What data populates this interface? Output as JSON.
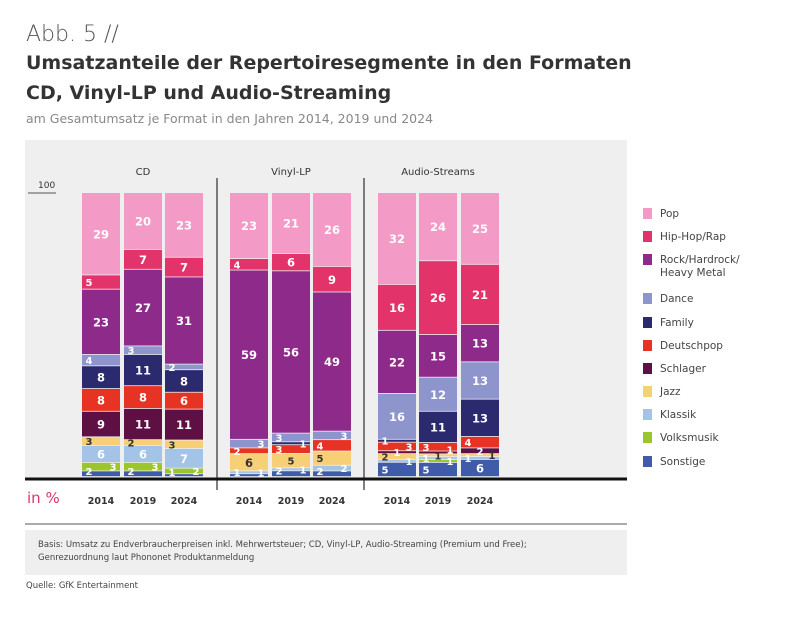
{
  "figure_label": "Abb. 5 //",
  "title_line1": "Umsatzanteile der Repertoiresegmente in den Formaten",
  "title_line2": "CD, Vinyl-LP und Audio-Streaming",
  "subtitle": "am Gesamtumsatz je Format in den Jahren 2014, 2019 und 2024",
  "footnote_line1": "Basis: Umsatz zu Endverbraucherpreisen inkl. Mehrwertsteuer; CD, Vinyl-LP, Audio-Streaming (Premium und Free);",
  "footnote_line2": "Genrezuordnung laut Phononet Produktanmeldung",
  "source": "Quelle: GfK Entertainment",
  "chart_data": {
    "type": "bar",
    "stacked": true,
    "ylabel": "in %",
    "ymax_label": "100",
    "ylim": [
      0,
      100
    ],
    "legend_position": "right",
    "segments": [
      "Pop",
      "Hip-Hop/Rap",
      "Rock/Hardrock/ Heavy Metal",
      "Dance",
      "Family",
      "Deutschpop",
      "Schlager",
      "Jazz",
      "Klassik",
      "Volksmusik",
      "Sonstige"
    ],
    "colors": [
      "#f39ac6",
      "#e3336b",
      "#8e2b8a",
      "#8d95cc",
      "#2b2a6e",
      "#e63323",
      "#5e1045",
      "#f7cf77",
      "#a3c4e6",
      "#9cc52b",
      "#3f5ba9"
    ],
    "groups": [
      {
        "name": "CD",
        "bars": [
          {
            "year": "2014",
            "values": [
              29,
              5,
              23,
              4,
              8,
              8,
              9,
              3,
              6,
              3,
              2
            ]
          },
          {
            "year": "2019",
            "values": [
              20,
              7,
              27,
              3,
              11,
              8,
              11,
              2,
              6,
              3,
              2
            ]
          },
          {
            "year": "2024",
            "values": [
              23,
              7,
              31,
              2,
              8,
              6,
              11,
              3,
              7,
              2,
              1
            ]
          }
        ]
      },
      {
        "name": "Vinyl-LP",
        "bars": [
          {
            "year": "2014",
            "values": [
              23,
              4,
              59,
              3,
              null,
              2,
              null,
              6,
              1,
              null,
              1
            ]
          },
          {
            "year": "2019",
            "values": [
              21,
              6,
              56,
              3,
              1,
              3,
              null,
              5,
              1,
              null,
              2
            ]
          },
          {
            "year": "2024",
            "values": [
              26,
              9,
              49,
              3,
              null,
              4,
              null,
              5,
              2,
              null,
              2
            ]
          }
        ]
      },
      {
        "name": "Audio-Streams",
        "bars": [
          {
            "year": "2014",
            "values": [
              32,
              16,
              22,
              16,
              1,
              3,
              1,
              2,
              1,
              null,
              5
            ]
          },
          {
            "year": "2019",
            "values": [
              24,
              26,
              15,
              12,
              11,
              3,
              1,
              1,
              1,
              1,
              5
            ]
          },
          {
            "year": "2024",
            "values": [
              25,
              21,
              13,
              13,
              13,
              4,
              2,
              1,
              1,
              null,
              6
            ]
          }
        ]
      }
    ]
  }
}
